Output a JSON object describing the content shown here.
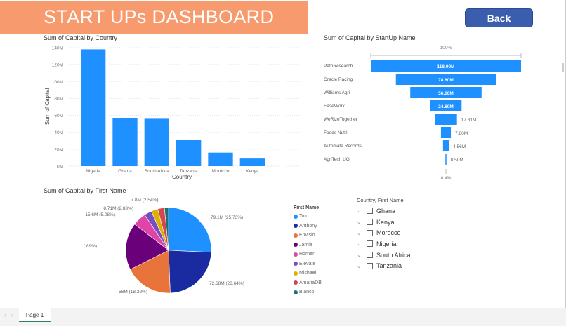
{
  "header": {
    "title": "START UPs DASHBOARD",
    "back_label": "Back"
  },
  "colors": {
    "banner": "#f79b6e",
    "bar": "#1e90ff",
    "back_button": "#3a5dae"
  },
  "chart_data": [
    {
      "type": "bar",
      "title": "Sum of Capital by Country",
      "xlabel": "Country",
      "ylabel": "Sum of Capital",
      "categories": [
        "Nigeria",
        "Ghana",
        "South Africa",
        "Tanzania",
        "Morocco",
        "Kenya"
      ],
      "values": [
        138,
        57,
        56,
        31,
        16,
        9
      ],
      "unit": "M",
      "ylim": [
        0,
        140
      ],
      "yticks": [
        "0M",
        "20M",
        "40M",
        "60M",
        "80M",
        "100M",
        "120M",
        "140M"
      ],
      "grid": true
    },
    {
      "type": "funnel",
      "title": "Sum of Capital by StartUp Name",
      "top_label": "100%",
      "bottom_label": "0.4%",
      "categories": [
        "PatnResearch",
        "Oracle Racing",
        "Williams Agri",
        "EaseWork",
        "WeRizeTogether",
        "Foods Nutri",
        "Automate Records",
        "AgriTech UG"
      ],
      "values": [
        118.0,
        78.6,
        56.0,
        24.6,
        17.31,
        7.8,
        4.56,
        0.5
      ],
      "labels": [
        "118.00M",
        "78.60M",
        "56.00M",
        "24.60M",
        "17.31M",
        "7.80M",
        "4.56M",
        "0.50M"
      ]
    },
    {
      "type": "pie",
      "title": "Sum of Capital by First Name",
      "legend_title": "First Name",
      "legend": "right",
      "categories": [
        "Toto",
        "Anthony",
        "Envisio",
        "Jamie",
        "Horner",
        "Elevate",
        "Michael",
        "AmariaDB",
        "Blanco"
      ],
      "values": [
        79.1,
        72.68,
        56,
        55,
        15.6,
        8.71,
        7.8,
        7.8,
        4.7
      ],
      "labels": [
        "79.1M (25.73%)",
        "72.68M (23.64%)",
        "56M (18.22%)",
        "55M (17.89%)",
        "15.6M (5.08%)",
        "8.71M (2.83%)",
        "7.8M (2.54%)",
        "",
        ""
      ],
      "colors": [
        "#1e90ff",
        "#1a2aa0",
        "#e8743b",
        "#6b007b",
        "#e044a7",
        "#744ec2",
        "#d9b300",
        "#d64550",
        "#197278"
      ]
    }
  ],
  "slicer": {
    "title": "Country, First Name",
    "items": [
      "Ghana",
      "Kenya",
      "Morocco",
      "Nigeria",
      "South Africa",
      "Tanzania"
    ]
  },
  "footer": {
    "page_tab": "Page 1",
    "prev": "‹",
    "next": "›"
  }
}
